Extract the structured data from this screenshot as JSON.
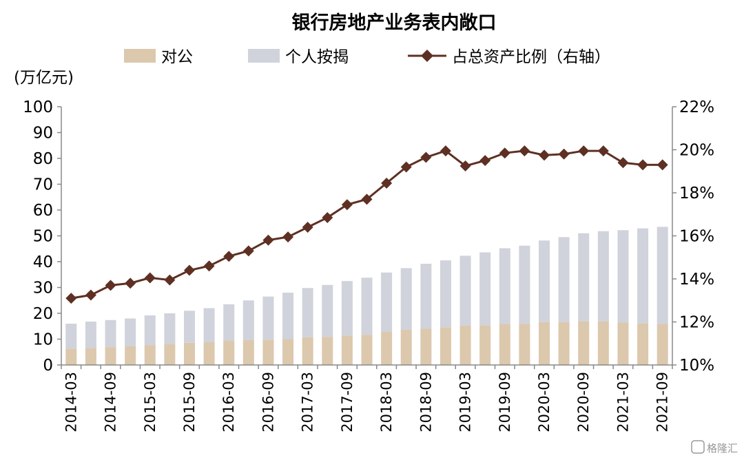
{
  "chart_data": {
    "type": "bar",
    "title": "银行房地产业务表内敞口",
    "ylabel": "(万亿元)",
    "ylim": [
      0,
      100
    ],
    "yticks": [
      "0",
      "10",
      "20",
      "30",
      "40",
      "50",
      "60",
      "70",
      "80",
      "90",
      "100"
    ],
    "y2lim": [
      10,
      22
    ],
    "y2ticks": [
      "10%",
      "12%",
      "14%",
      "16%",
      "18%",
      "20%",
      "22%"
    ],
    "legend_position": "top",
    "colors": {
      "corporate": "#dcc8ad",
      "mortgage": "#d0d3db",
      "ratio": "#5e3023"
    },
    "categories": [
      "2014-03",
      "2014-06",
      "2014-09",
      "2014-12",
      "2015-03",
      "2015-06",
      "2015-09",
      "2015-12",
      "2016-03",
      "2016-06",
      "2016-09",
      "2016-12",
      "2017-03",
      "2017-06",
      "2017-09",
      "2017-12",
      "2018-03",
      "2018-06",
      "2018-09",
      "2018-12",
      "2019-03",
      "2019-06",
      "2019-09",
      "2019-12",
      "2020-03",
      "2020-06",
      "2020-09",
      "2020-12",
      "2021-03",
      "2021-06",
      "2021-09"
    ],
    "xtick_labels": [
      "2014-03",
      "2014-09",
      "2015-03",
      "2015-09",
      "2016-03",
      "2016-09",
      "2017-03",
      "2017-09",
      "2018-03",
      "2018-09",
      "2019-03",
      "2019-09",
      "2020-03",
      "2020-09",
      "2021-03",
      "2021-09"
    ],
    "series": [
      {
        "name": "对公",
        "type": "bar",
        "stack": true,
        "values": [
          6.3,
          6.6,
          6.9,
          7.3,
          7.7,
          8.2,
          8.6,
          8.8,
          9.5,
          9.7,
          9.8,
          10.0,
          10.7,
          10.9,
          11.4,
          11.7,
          12.8,
          13.6,
          14.1,
          14.6,
          15.2,
          15.3,
          15.9,
          15.9,
          16.6,
          16.6,
          16.9,
          16.9,
          16.4,
          16.1,
          15.9
        ]
      },
      {
        "name": "个人按揭",
        "type": "bar",
        "stack": true,
        "values": [
          9.7,
          10.2,
          10.5,
          10.7,
          11.5,
          11.8,
          12.4,
          13.2,
          14.0,
          15.3,
          16.7,
          18.0,
          19.1,
          20.1,
          21.1,
          22.1,
          23.0,
          23.9,
          25.1,
          25.9,
          27.1,
          28.3,
          29.3,
          30.3,
          31.6,
          32.9,
          34.1,
          34.9,
          35.8,
          36.8,
          37.6
        ]
      },
      {
        "name": "占总资产比例（右轴）",
        "type": "line",
        "axis": "right",
        "unit": "%",
        "values": [
          13.1,
          13.25,
          13.7,
          13.8,
          14.05,
          13.95,
          14.4,
          14.6,
          15.05,
          15.3,
          15.8,
          15.95,
          16.4,
          16.85,
          17.45,
          17.7,
          18.45,
          19.2,
          19.65,
          19.95,
          19.25,
          19.5,
          19.85,
          19.95,
          19.75,
          19.8,
          19.95,
          19.95,
          19.4,
          19.3,
          19.3
        ]
      }
    ]
  },
  "watermark": "格隆汇"
}
